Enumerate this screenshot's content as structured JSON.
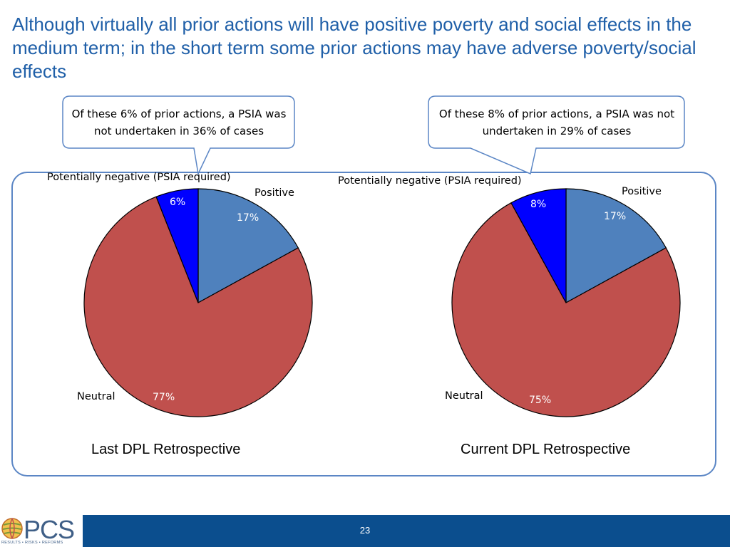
{
  "slide": {
    "title": "Although virtually all prior actions will have positive poverty and social effects in the medium term; in the short term some prior actions may have adverse poverty/social effects",
    "page_number": "23"
  },
  "callouts": [
    {
      "text": "Of these 6% of prior actions, a PSIA was not undertaken in 36% of cases"
    },
    {
      "text": "Of these 8% of prior actions, a PSIA was not undertaken in 29% of cases"
    }
  ],
  "logo": {
    "text": "PCS",
    "tagline": "RESULTS • RISKS • REFORMS"
  },
  "colors": {
    "positive": "#4f81bd",
    "neutral": "#c0504d",
    "negative": "#0000ff",
    "title": "#1f5fa8",
    "footer": "#0b4e8e",
    "panel_border": "#5b86c5"
  },
  "chart_data": [
    {
      "type": "pie",
      "title": "Last DPL Retrospective",
      "slices": [
        {
          "label": "Positive",
          "value": 17,
          "value_label": "17%"
        },
        {
          "label": "Neutral",
          "value": 77,
          "value_label": "77%"
        },
        {
          "label": "Potentially negative (PSIA required)",
          "value": 6,
          "value_label": "6%"
        }
      ]
    },
    {
      "type": "pie",
      "title": "Current DPL Retrospective",
      "slices": [
        {
          "label": "Positive",
          "value": 17,
          "value_label": "17%"
        },
        {
          "label": "Neutral",
          "value": 75,
          "value_label": "75%"
        },
        {
          "label": "Potentially negative (PSIA required)",
          "value": 8,
          "value_label": "8%"
        }
      ]
    }
  ]
}
